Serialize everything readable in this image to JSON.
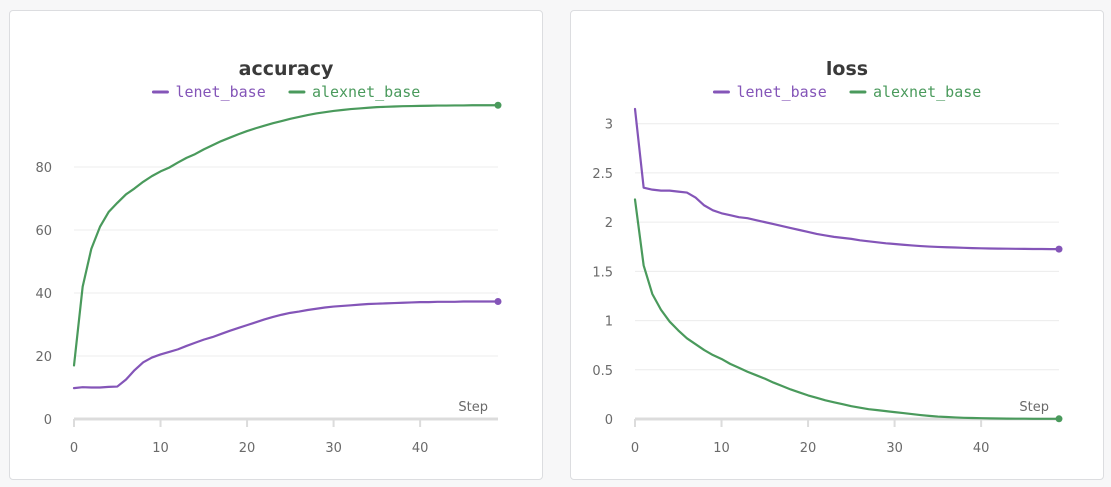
{
  "colors": {
    "lenet_base": "#8455b8",
    "alexnet_base": "#4a9a5c",
    "grid": "#ececec",
    "axis": "#dcdcdc"
  },
  "chart_data": [
    {
      "type": "line",
      "title": "accuracy",
      "xlabel": "Step",
      "ylabel": "",
      "xlim": [
        0,
        49
      ],
      "ylim": [
        0,
        100
      ],
      "x_ticks": [
        0,
        10,
        20,
        30,
        40
      ],
      "x_tick_labels": [
        "0",
        "10",
        "20",
        "30",
        "40"
      ],
      "y_ticks": [
        0,
        20,
        40,
        60,
        80
      ],
      "y_tick_labels": [
        "0",
        "20",
        "40",
        "60",
        "80"
      ],
      "grid": true,
      "legend": "top-center",
      "series": [
        {
          "name": "lenet_base",
          "color": "#8455b8",
          "x": [
            0,
            1,
            2,
            3,
            4,
            5,
            6,
            7,
            8,
            9,
            10,
            11,
            12,
            13,
            14,
            15,
            16,
            17,
            18,
            19,
            20,
            21,
            22,
            23,
            24,
            25,
            26,
            27,
            28,
            29,
            30,
            31,
            32,
            33,
            34,
            35,
            36,
            37,
            38,
            39,
            40,
            41,
            42,
            43,
            44,
            45,
            46,
            47,
            48,
            49
          ],
          "y": [
            9.8,
            10.1,
            10.0,
            10.0,
            10.2,
            10.3,
            12.5,
            15.5,
            18,
            19.5,
            20.5,
            21.3,
            22.1,
            23.2,
            24.2,
            25.2,
            26.0,
            27.0,
            28.0,
            28.9,
            29.8,
            30.7,
            31.6,
            32.4,
            33.1,
            33.7,
            34.1,
            34.6,
            35.0,
            35.4,
            35.7,
            35.9,
            36.1,
            36.3,
            36.5,
            36.6,
            36.7,
            36.8,
            36.9,
            37.0,
            37.1,
            37.1,
            37.2,
            37.2,
            37.2,
            37.3,
            37.3,
            37.3,
            37.3,
            37.3
          ]
        },
        {
          "name": "alexnet_base",
          "color": "#4a9a5c",
          "x": [
            0,
            1,
            2,
            3,
            4,
            5,
            6,
            7,
            8,
            9,
            10,
            11,
            12,
            13,
            14,
            15,
            16,
            17,
            18,
            19,
            20,
            21,
            22,
            23,
            24,
            25,
            26,
            27,
            28,
            29,
            30,
            31,
            32,
            33,
            34,
            35,
            36,
            37,
            38,
            39,
            40,
            41,
            42,
            43,
            44,
            45,
            46,
            47,
            48,
            49
          ],
          "y": [
            17,
            42,
            54,
            61,
            65.7,
            68.6,
            71.3,
            73.2,
            75.3,
            77.1,
            78.6,
            79.8,
            81.4,
            82.9,
            84.1,
            85.6,
            86.9,
            88.2,
            89.3,
            90.4,
            91.4,
            92.3,
            93.1,
            93.9,
            94.6,
            95.3,
            95.9,
            96.5,
            97.0,
            97.4,
            97.8,
            98.1,
            98.4,
            98.6,
            98.8,
            99.0,
            99.1,
            99.2,
            99.3,
            99.35,
            99.4,
            99.45,
            99.5,
            99.5,
            99.55,
            99.55,
            99.6,
            99.6,
            99.6,
            99.6
          ]
        }
      ]
    },
    {
      "type": "line",
      "title": "loss",
      "xlabel": "Step",
      "ylabel": "",
      "xlim": [
        0,
        49
      ],
      "ylim": [
        0,
        3.2
      ],
      "x_ticks": [
        0,
        10,
        20,
        30,
        40
      ],
      "x_tick_labels": [
        "0",
        "10",
        "20",
        "30",
        "40"
      ],
      "y_ticks": [
        0,
        0.5,
        1,
        1.5,
        2,
        2.5,
        3
      ],
      "y_tick_labels": [
        "0",
        "0.5",
        "1",
        "1.5",
        "2",
        "2.5",
        "3"
      ],
      "grid": true,
      "legend": "top-center",
      "series": [
        {
          "name": "lenet_base",
          "color": "#8455b8",
          "x": [
            0,
            1,
            2,
            3,
            4,
            5,
            6,
            7,
            8,
            9,
            10,
            11,
            12,
            13,
            14,
            15,
            16,
            17,
            18,
            19,
            20,
            21,
            22,
            23,
            24,
            25,
            26,
            27,
            28,
            29,
            30,
            31,
            32,
            33,
            34,
            35,
            36,
            37,
            38,
            39,
            40,
            41,
            42,
            43,
            44,
            45,
            46,
            47,
            48,
            49
          ],
          "y": [
            3.15,
            2.35,
            2.33,
            2.32,
            2.32,
            2.31,
            2.3,
            2.25,
            2.17,
            2.12,
            2.09,
            2.07,
            2.05,
            2.04,
            2.02,
            2.0,
            1.98,
            1.96,
            1.94,
            1.92,
            1.9,
            1.88,
            1.865,
            1.85,
            1.84,
            1.83,
            1.815,
            1.805,
            1.795,
            1.785,
            1.778,
            1.77,
            1.763,
            1.757,
            1.752,
            1.748,
            1.745,
            1.742,
            1.739,
            1.736,
            1.734,
            1.732,
            1.731,
            1.73,
            1.729,
            1.728,
            1.727,
            1.727,
            1.726,
            1.726
          ]
        },
        {
          "name": "alexnet_base",
          "color": "#4a9a5c",
          "x": [
            0,
            1,
            2,
            3,
            4,
            5,
            6,
            7,
            8,
            9,
            10,
            11,
            12,
            13,
            14,
            15,
            16,
            17,
            18,
            19,
            20,
            21,
            22,
            23,
            24,
            25,
            26,
            27,
            28,
            29,
            30,
            31,
            32,
            33,
            34,
            35,
            36,
            37,
            38,
            39,
            40,
            41,
            42,
            43,
            44,
            45,
            46,
            47,
            48,
            49
          ],
          "y": [
            2.23,
            1.56,
            1.27,
            1.11,
            0.99,
            0.9,
            0.82,
            0.76,
            0.7,
            0.65,
            0.61,
            0.56,
            0.52,
            0.48,
            0.445,
            0.41,
            0.37,
            0.335,
            0.3,
            0.27,
            0.24,
            0.215,
            0.19,
            0.17,
            0.15,
            0.13,
            0.115,
            0.1,
            0.09,
            0.08,
            0.07,
            0.06,
            0.05,
            0.04,
            0.032,
            0.025,
            0.02,
            0.016,
            0.012,
            0.01,
            0.008,
            0.006,
            0.005,
            0.004,
            0.003,
            0.003,
            0.002,
            0.002,
            0.002,
            0.002
          ]
        }
      ]
    }
  ]
}
